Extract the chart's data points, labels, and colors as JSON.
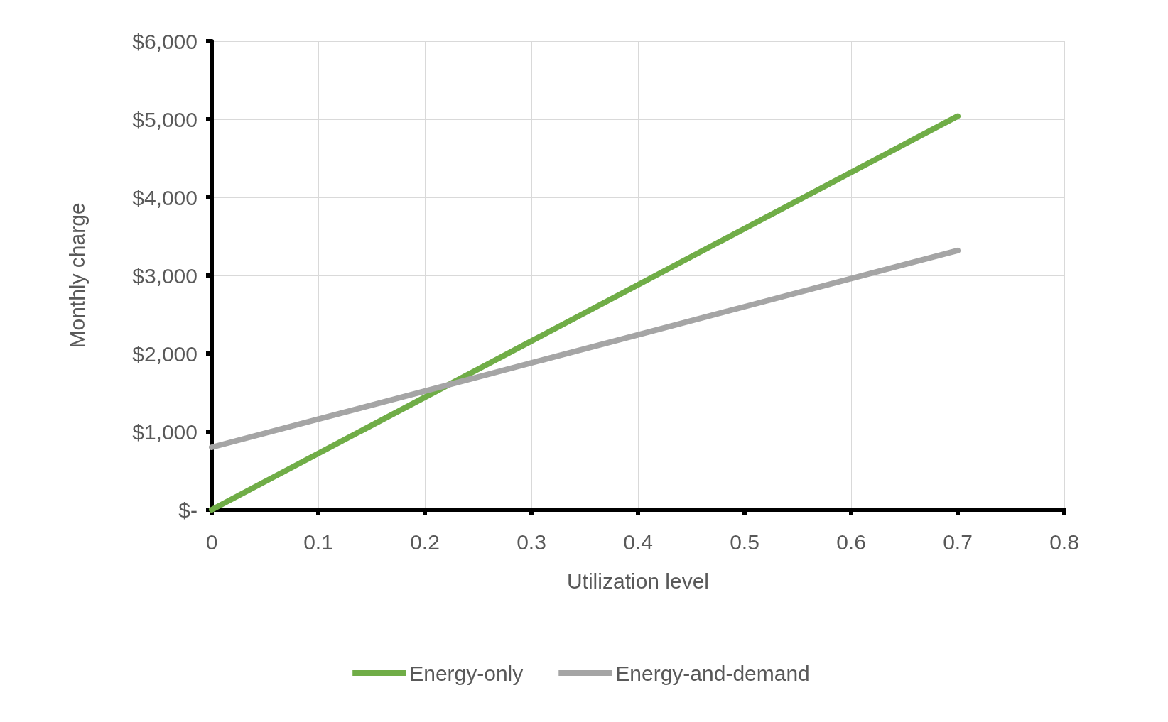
{
  "chart_data": {
    "type": "line",
    "xlabel": "Utilization level",
    "ylabel": "Monthly charge",
    "x": [
      0,
      0.1,
      0.2,
      0.3,
      0.4,
      0.5,
      0.6,
      0.7
    ],
    "series": [
      {
        "name": "Energy-only",
        "color": "#70ad47",
        "values": [
          0,
          720,
          1440,
          2160,
          2880,
          3600,
          4320,
          5040
        ]
      },
      {
        "name": "Energy-and-demand",
        "color": "#a5a5a5",
        "values": [
          800,
          1160,
          1520,
          1880,
          2240,
          2600,
          2960,
          3320
        ]
      }
    ],
    "xlim": [
      0,
      0.8
    ],
    "xticks": [
      0,
      0.1,
      0.2,
      0.3,
      0.4,
      0.5,
      0.6,
      0.7,
      0.8
    ],
    "ylim": [
      0,
      6000
    ],
    "yticks": [
      {
        "value": 0,
        "label": "$-"
      },
      {
        "value": 1000,
        "label": "$1,000"
      },
      {
        "value": 2000,
        "label": "$2,000"
      },
      {
        "value": 3000,
        "label": "$3,000"
      },
      {
        "value": 4000,
        "label": "$4,000"
      },
      {
        "value": 5000,
        "label": "$5,000"
      },
      {
        "value": 6000,
        "label": "$6,000"
      }
    ],
    "grid": true,
    "legend": "bottom",
    "line_style": "solid"
  }
}
